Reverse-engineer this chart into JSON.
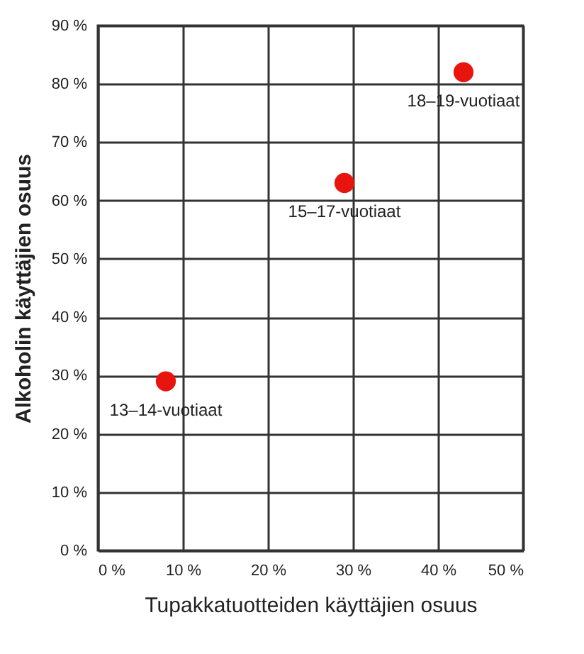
{
  "chart_data": {
    "type": "scatter",
    "xlabel": "Tupakkatuotteiden käyttäjien osuus",
    "ylabel": "Alkoholin käyttäjien osuus",
    "x": [
      8,
      29,
      43
    ],
    "series": [
      {
        "color": "#e8150f",
        "values": [
          29,
          63,
          82
        ]
      }
    ],
    "marker": "circle",
    "grid": true,
    "xlim": [
      0,
      50
    ],
    "ylim": [
      0,
      90
    ],
    "xticks": [
      {
        "value": 0,
        "label": "0 %"
      },
      {
        "value": 10,
        "label": "10 %"
      },
      {
        "value": 20,
        "label": "20 %"
      },
      {
        "value": 30,
        "label": "30 %"
      },
      {
        "value": 40,
        "label": "40 %"
      },
      {
        "value": 50,
        "label": "50 %"
      }
    ],
    "yticks": [
      {
        "value": 0,
        "label": "0 %"
      },
      {
        "value": 10,
        "label": "10 %"
      },
      {
        "value": 20,
        "label": "20 %"
      },
      {
        "value": 30,
        "label": "30 %"
      },
      {
        "value": 40,
        "label": "40 %"
      },
      {
        "value": 50,
        "label": "50 %"
      },
      {
        "value": 60,
        "label": "60 %"
      },
      {
        "value": 70,
        "label": "70 %"
      },
      {
        "value": 80,
        "label": "80 %"
      },
      {
        "value": 90,
        "label": "90 %"
      }
    ],
    "annotations": [
      {
        "text": "13–14-vuotiaat",
        "x": 8,
        "y": 29
      },
      {
        "text": "15–17-vuotiaat",
        "x": 29,
        "y": 63
      },
      {
        "text": "18–19-vuotiaat",
        "x": 43,
        "y": 82
      }
    ]
  }
}
